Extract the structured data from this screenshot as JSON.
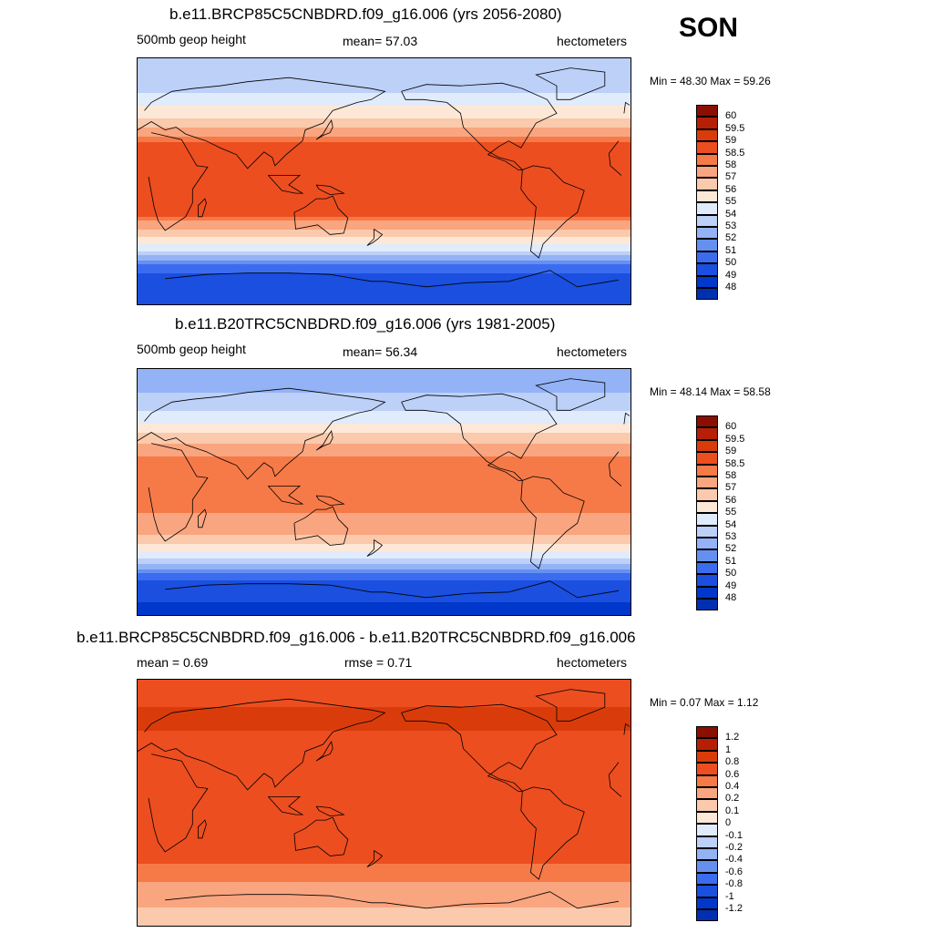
{
  "season": "SON",
  "colors": {
    "scale": [
      "#00007f",
      "#002fb0",
      "#0038cc",
      "#1a4fe0",
      "#3b6cf0",
      "#6690f0",
      "#93b3f6",
      "#bcd0f8",
      "#e0ebfb",
      "#fde8d8",
      "#fbc9ac",
      "#f9a57f",
      "#f67a48",
      "#ec4e20",
      "#d93c0a",
      "#b61f05",
      "#8a0f02"
    ]
  },
  "panels": [
    {
      "title": "b.e11.BRCP85C5CNBDRD.f09_g16.006 (yrs 2056-2080)",
      "left_label": "500mb geop height",
      "center_label": "mean=  57.03",
      "right_label": "hectometers",
      "minmax": "Min =  48.30 Max =  59.26",
      "colorbar_labels": [
        "60",
        "59.5",
        "59",
        "58.5",
        "58",
        "57",
        "56",
        "55",
        "54",
        "53",
        "52",
        "51",
        "50",
        "49",
        "48"
      ]
    },
    {
      "title": "b.e11.B20TRC5CNBDRD.f09_g16.006 (yrs 1981-2005)",
      "left_label": "500mb geop height",
      "center_label": "mean=  56.34",
      "right_label": "hectometers",
      "minmax": "Min =  48.14 Max =  58.58",
      "colorbar_labels": [
        "60",
        "59.5",
        "59",
        "58.5",
        "58",
        "57",
        "56",
        "55",
        "54",
        "53",
        "52",
        "51",
        "50",
        "49",
        "48"
      ]
    },
    {
      "title": "b.e11.BRCP85C5CNBDRD.f09_g16.006 - b.e11.B20TRC5CNBDRD.f09_g16.006",
      "left_label": "mean =   0.69",
      "center_label": "rmse =   0.71",
      "right_label": "hectometers",
      "minmax": "Min =   0.07 Max =   1.12",
      "colorbar_labels": [
        "1.2",
        "1",
        "0.8",
        "0.6",
        "0.4",
        "0.2",
        "0.1",
        "0",
        "-0.1",
        "-0.2",
        "-0.4",
        "-0.6",
        "-0.8",
        "-1",
        "-1.2"
      ]
    }
  ],
  "chart_data": [
    {
      "type": "heatmap",
      "title": "b.e11.BRCP85C5CNBDRD.f09_g16.006 (yrs 2056-2080)",
      "variable": "500mb geop height",
      "units": "hectometers",
      "mean": 57.03,
      "min": 48.3,
      "max": 59.26,
      "color_levels": [
        48,
        49,
        50,
        51,
        52,
        53,
        54,
        55,
        56,
        57,
        58,
        58.5,
        59,
        59.5,
        60
      ],
      "latitude_bands": [
        {
          "lat": 80,
          "value": 53
        },
        {
          "lat": 65,
          "value": 54
        },
        {
          "lat": 50,
          "value": 55.5
        },
        {
          "lat": 40,
          "value": 57
        },
        {
          "lat": 25,
          "value": 59
        },
        {
          "lat": 10,
          "value": 58.8
        },
        {
          "lat": -10,
          "value": 58.7
        },
        {
          "lat": -25,
          "value": 58.5
        },
        {
          "lat": -40,
          "value": 56
        },
        {
          "lat": -50,
          "value": 54
        },
        {
          "lat": -60,
          "value": 51
        },
        {
          "lat": -70,
          "value": 49.5
        },
        {
          "lat": -85,
          "value": 49
        }
      ]
    },
    {
      "type": "heatmap",
      "title": "b.e11.B20TRC5CNBDRD.f09_g16.006 (yrs 1981-2005)",
      "variable": "500mb geop height",
      "units": "hectometers",
      "mean": 56.34,
      "min": 48.14,
      "max": 58.58,
      "color_levels": [
        48,
        49,
        50,
        51,
        52,
        53,
        54,
        55,
        56,
        57,
        58,
        58.5,
        59,
        59.5,
        60
      ],
      "latitude_bands": [
        {
          "lat": 80,
          "value": 52.5
        },
        {
          "lat": 65,
          "value": 53.5
        },
        {
          "lat": 50,
          "value": 55
        },
        {
          "lat": 40,
          "value": 56.5
        },
        {
          "lat": 25,
          "value": 58.2
        },
        {
          "lat": 10,
          "value": 58.2
        },
        {
          "lat": -10,
          "value": 58.1
        },
        {
          "lat": -25,
          "value": 57.8
        },
        {
          "lat": -40,
          "value": 55.5
        },
        {
          "lat": -50,
          "value": 53.5
        },
        {
          "lat": -60,
          "value": 50.5
        },
        {
          "lat": -70,
          "value": 49.3
        },
        {
          "lat": -85,
          "value": 48.8
        }
      ]
    },
    {
      "type": "heatmap",
      "title": "b.e11.BRCP85C5CNBDRD.f09_g16.006 - b.e11.B20TRC5CNBDRD.f09_g16.006",
      "units": "hectometers",
      "mean": 0.69,
      "rmse": 0.71,
      "min": 0.07,
      "max": 1.12,
      "color_levels": [
        -1.2,
        -1,
        -0.8,
        -0.6,
        -0.4,
        -0.2,
        -0.1,
        0,
        0.1,
        0.2,
        0.4,
        0.6,
        0.8,
        1,
        1.2
      ],
      "latitude_bands": [
        {
          "lat": 80,
          "value": 0.75
        },
        {
          "lat": 60,
          "value": 0.85
        },
        {
          "lat": 40,
          "value": 0.7
        },
        {
          "lat": 20,
          "value": 0.62
        },
        {
          "lat": 0,
          "value": 0.6
        },
        {
          "lat": -20,
          "value": 0.62
        },
        {
          "lat": -35,
          "value": 0.75
        },
        {
          "lat": -50,
          "value": 0.5
        },
        {
          "lat": -65,
          "value": 0.3
        },
        {
          "lat": -80,
          "value": 0.15
        }
      ]
    }
  ]
}
